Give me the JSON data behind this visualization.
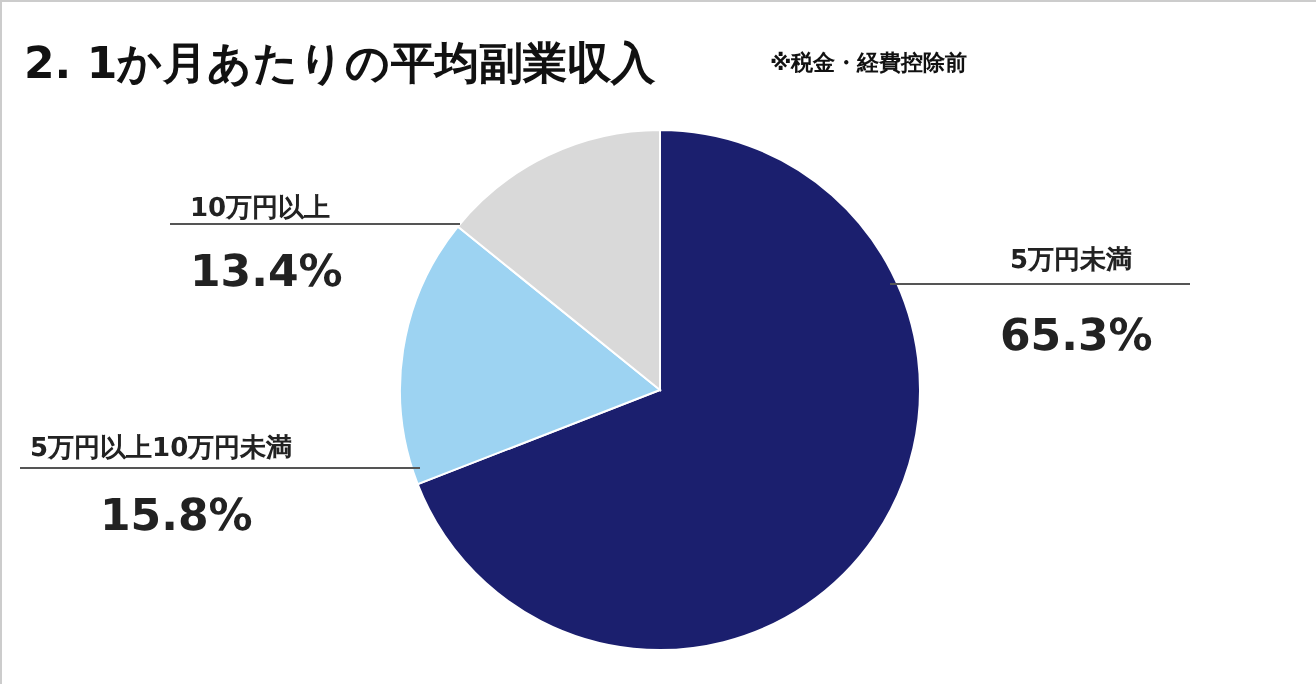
{
  "chart_data": {
    "type": "pie",
    "title": "2. 1か月あたりの平均副業収入",
    "subtitle": "※税金・経費控除前",
    "categories": [
      "5万円未満",
      "5万円以上10万円未満",
      "10万円以上"
    ],
    "values": [
      65.3,
      15.8,
      13.4
    ],
    "colors": [
      "#1b1f6e",
      "#9dd3f2",
      "#d9d9d9"
    ],
    "value_labels": [
      "65.3%",
      "15.8%",
      "13.4%"
    ]
  }
}
